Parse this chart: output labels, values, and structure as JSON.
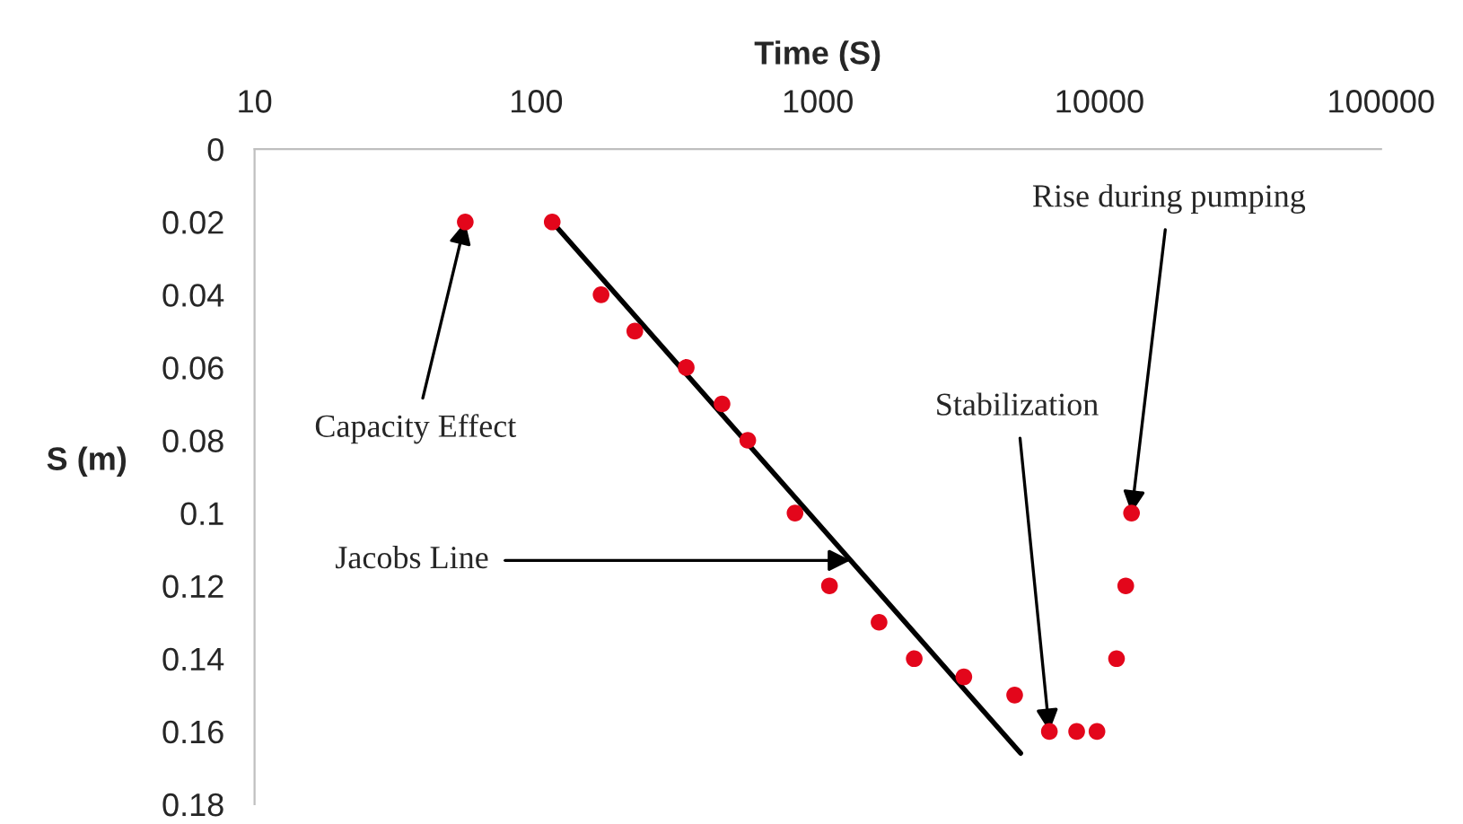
{
  "chart_data": {
    "type": "scatter",
    "xlabel": "Time (S)",
    "ylabel": "S (m)",
    "log": "x",
    "xlim": [
      10,
      100000
    ],
    "xticks": [
      10,
      100,
      1000,
      10000,
      100000
    ],
    "ylim": [
      0.18,
      0
    ],
    "yticks": [
      0,
      0.02,
      0.04,
      0.06,
      0.08,
      0.1,
      0.12,
      0.14,
      0.16,
      0.18
    ],
    "grid": false,
    "legend": false,
    "series": [
      {
        "marker": "circle",
        "color": "#e3061b",
        "x": [
          56,
          114,
          170,
          224,
          341,
          457,
          564,
          830,
          1100,
          1650,
          2200,
          3300,
          5000,
          6640,
          8300,
          9800,
          11500,
          12400,
          13000
        ],
        "values": [
          0.02,
          0.02,
          0.04,
          0.05,
          0.06,
          0.07,
          0.08,
          0.1,
          0.12,
          0.13,
          0.14,
          0.145,
          0.15,
          0.16,
          0.16,
          0.16,
          0.14,
          0.12,
          0.1
        ]
      },
      {
        "type": "line",
        "color": "#000000",
        "line_style": "solid",
        "x": [
          114,
          5250
        ],
        "values": [
          0.02,
          0.166
        ]
      }
    ],
    "annotations": [
      {
        "text": "Capacity Effect",
        "x": 56,
        "y": 0.02
      },
      {
        "text": "Jacobs Line",
        "x": 1306,
        "y": 0.113
      },
      {
        "text": "Stabilization",
        "x": 6640,
        "y": 0.16
      },
      {
        "text": "Rise during pumping",
        "x": 13000,
        "y": 0.1
      }
    ]
  }
}
